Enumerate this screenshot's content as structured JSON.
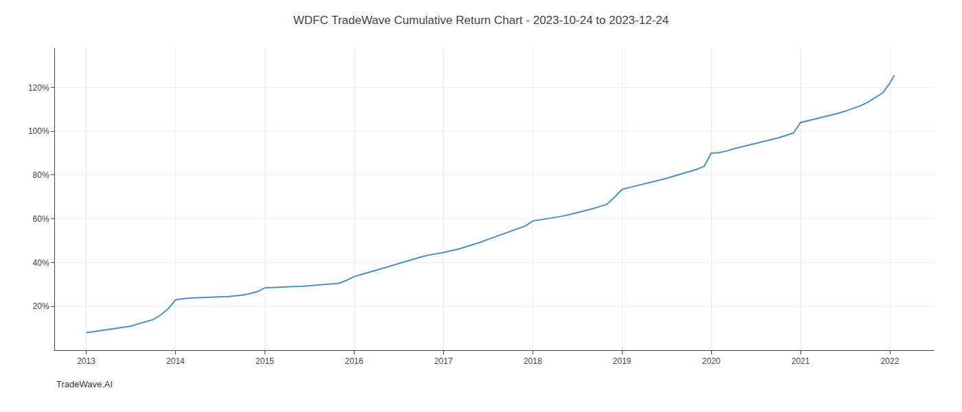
{
  "chart_data": {
    "type": "line",
    "title": "WDFC TradeWave Cumulative Return Chart - 2023-10-24 to 2023-12-24",
    "annotations": [
      "TradeWave.AI"
    ],
    "color": "#4a90c4",
    "grid": true,
    "x": [
      2013.0,
      2013.08,
      2013.17,
      2013.25,
      2013.33,
      2013.42,
      2013.5,
      2013.58,
      2013.67,
      2013.75,
      2013.83,
      2013.92,
      2014.0,
      2014.08,
      2014.17,
      2014.25,
      2014.33,
      2014.42,
      2014.5,
      2014.58,
      2014.67,
      2014.75,
      2014.83,
      2014.92,
      2015.0,
      2015.08,
      2015.17,
      2015.25,
      2015.33,
      2015.42,
      2015.5,
      2015.58,
      2015.67,
      2015.75,
      2015.83,
      2015.92,
      2016.0,
      2016.08,
      2016.17,
      2016.25,
      2016.33,
      2016.42,
      2016.5,
      2016.58,
      2016.67,
      2016.75,
      2016.83,
      2016.92,
      2017.0,
      2017.08,
      2017.17,
      2017.25,
      2017.33,
      2017.42,
      2017.5,
      2017.58,
      2017.67,
      2017.75,
      2017.83,
      2017.92,
      2018.0,
      2018.08,
      2018.17,
      2018.25,
      2018.33,
      2018.42,
      2018.5,
      2018.58,
      2018.67,
      2018.75,
      2018.83,
      2018.92,
      2019.0,
      2019.08,
      2019.17,
      2019.25,
      2019.33,
      2019.42,
      2019.5,
      2019.58,
      2019.67,
      2019.75,
      2019.83,
      2019.92,
      2020.0,
      2020.08,
      2020.17,
      2020.25,
      2020.33,
      2020.42,
      2020.5,
      2020.58,
      2020.67,
      2020.75,
      2020.83,
      2020.92,
      2021.0,
      2021.08,
      2021.17,
      2021.25,
      2021.33,
      2021.42,
      2021.5,
      2021.58,
      2021.67,
      2021.75,
      2021.83,
      2021.92,
      2022.0,
      2022.05
    ],
    "values": [
      0.08,
      0.085,
      0.09,
      0.095,
      0.1,
      0.105,
      0.11,
      0.12,
      0.13,
      0.14,
      0.16,
      0.19,
      0.23,
      0.235,
      0.238,
      0.24,
      0.242,
      0.243,
      0.244,
      0.245,
      0.248,
      0.252,
      0.258,
      0.268,
      0.285,
      0.287,
      0.288,
      0.29,
      0.291,
      0.292,
      0.294,
      0.297,
      0.3,
      0.303,
      0.306,
      0.32,
      0.336,
      0.346,
      0.356,
      0.366,
      0.376,
      0.386,
      0.396,
      0.406,
      0.416,
      0.426,
      0.434,
      0.44,
      0.446,
      0.454,
      0.462,
      0.472,
      0.482,
      0.494,
      0.506,
      0.518,
      0.53,
      0.542,
      0.554,
      0.568,
      0.59,
      0.595,
      0.6,
      0.606,
      0.612,
      0.62,
      0.628,
      0.636,
      0.646,
      0.656,
      0.666,
      0.7,
      0.734,
      0.743,
      0.752,
      0.76,
      0.768,
      0.776,
      0.785,
      0.795,
      0.805,
      0.815,
      0.825,
      0.84,
      0.9,
      0.902,
      0.91,
      0.92,
      0.928,
      0.936,
      0.944,
      0.952,
      0.96,
      0.97,
      0.98,
      0.992,
      1.04,
      1.048,
      1.056,
      1.064,
      1.072,
      1.082,
      1.092,
      1.104,
      1.116,
      1.132,
      1.152,
      1.175,
      1.22,
      1.255
    ],
    "xlim": [
      2012.65,
      2022.5
    ],
    "ylim": [
      0.0,
      1.38
    ],
    "xticks": [
      2013,
      2014,
      2015,
      2016,
      2017,
      2018,
      2019,
      2020,
      2021,
      2022
    ],
    "yticks": [
      {
        "value": 0.2,
        "label": "20%"
      },
      {
        "value": 0.4,
        "label": "40%"
      },
      {
        "value": 0.6,
        "label": "60%"
      },
      {
        "value": 0.8,
        "label": "80%"
      },
      {
        "value": 1.0,
        "label": "100%"
      },
      {
        "value": 1.2,
        "label": "120%"
      }
    ]
  }
}
